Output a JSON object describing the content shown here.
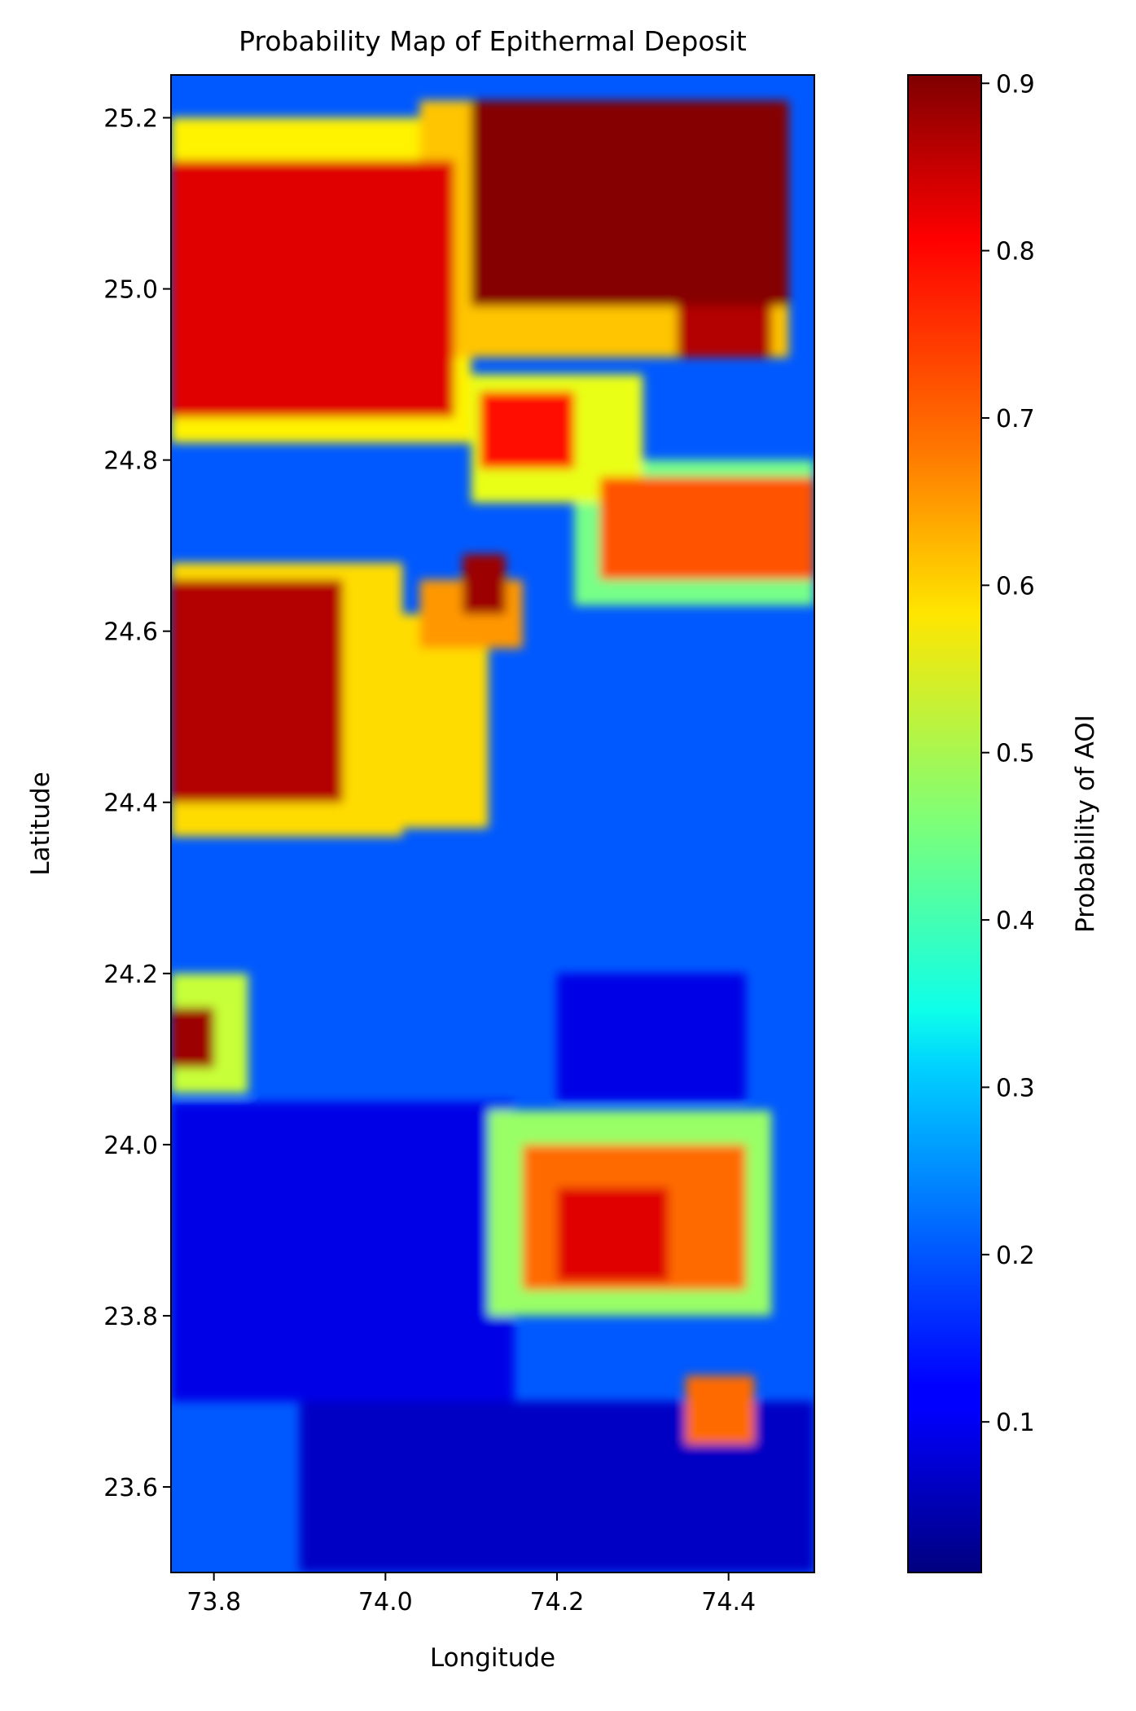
{
  "chart_data": {
    "type": "heatmap",
    "title": "Probability Map of Epithermal Deposit",
    "xlabel": "Longitude",
    "ylabel": "Latitude",
    "xlim": [
      73.75,
      74.5
    ],
    "ylim": [
      23.5,
      25.25
    ],
    "xticks": [
      {
        "value": 73.8,
        "label": "73.8"
      },
      {
        "value": 74.0,
        "label": "74.0"
      },
      {
        "value": 74.2,
        "label": "74.2"
      },
      {
        "value": 74.4,
        "label": "74.4"
      }
    ],
    "yticks": [
      {
        "value": 23.6,
        "label": "23.6"
      },
      {
        "value": 23.8,
        "label": "23.8"
      },
      {
        "value": 24.0,
        "label": "24.0"
      },
      {
        "value": 24.2,
        "label": "24.2"
      },
      {
        "value": 24.4,
        "label": "24.4"
      },
      {
        "value": 24.6,
        "label": "24.6"
      },
      {
        "value": 24.8,
        "label": "24.8"
      },
      {
        "value": 25.0,
        "label": "25.0"
      },
      {
        "value": 25.2,
        "label": "25.2"
      }
    ],
    "colormap": "jet",
    "colorbar": {
      "label": "Probability of AOI",
      "range": [
        0.01,
        0.905
      ],
      "ticks": [
        {
          "value": 0.1,
          "label": "0.1"
        },
        {
          "value": 0.2,
          "label": "0.2"
        },
        {
          "value": 0.3,
          "label": "0.3"
        },
        {
          "value": 0.4,
          "label": "0.4"
        },
        {
          "value": 0.5,
          "label": "0.5"
        },
        {
          "value": 0.6,
          "label": "0.6"
        },
        {
          "value": 0.7,
          "label": "0.7"
        },
        {
          "value": 0.8,
          "label": "0.8"
        },
        {
          "value": 0.9,
          "label": "0.9"
        }
      ]
    },
    "background_value": 0.2,
    "regions": [
      {
        "name": "northeast-dark-red",
        "lon": [
          74.1,
          74.47
        ],
        "lat": [
          24.98,
          25.22
        ],
        "value": 0.9
      },
      {
        "name": "northeast-lobe",
        "lon": [
          74.34,
          74.45
        ],
        "lat": [
          24.92,
          25.05
        ],
        "value": 0.86
      },
      {
        "name": "northeast-fringe",
        "lon": [
          74.04,
          74.47
        ],
        "lat": [
          24.92,
          25.22
        ],
        "value": 0.62
      },
      {
        "name": "northwest-red",
        "lon": [
          73.75,
          74.08
        ],
        "lat": [
          24.85,
          25.15
        ],
        "value": 0.82
      },
      {
        "name": "northwest-fringe",
        "lon": [
          73.75,
          74.1
        ],
        "lat": [
          24.82,
          25.2
        ],
        "value": 0.58
      },
      {
        "name": "central-north-patch",
        "lon": [
          74.11,
          74.22
        ],
        "lat": [
          24.79,
          24.88
        ],
        "value": 0.78
      },
      {
        "name": "central-north-fringe",
        "lon": [
          74.1,
          74.3
        ],
        "lat": [
          24.75,
          24.9
        ],
        "value": 0.55
      },
      {
        "name": "east-orange",
        "lon": [
          74.25,
          74.5
        ],
        "lat": [
          24.66,
          24.78
        ],
        "value": 0.72
      },
      {
        "name": "east-fringe",
        "lon": [
          74.22,
          74.5
        ],
        "lat": [
          24.63,
          24.8
        ],
        "value": 0.45
      },
      {
        "name": "west-red",
        "lon": [
          73.75,
          73.95
        ],
        "lat": [
          24.4,
          24.66
        ],
        "value": 0.86
      },
      {
        "name": "west-fringe",
        "lon": [
          73.75,
          74.02
        ],
        "lat": [
          24.36,
          24.68
        ],
        "value": 0.6
      },
      {
        "name": "west-center-yellow",
        "lon": [
          73.97,
          74.12
        ],
        "lat": [
          24.37,
          24.62
        ],
        "value": 0.6
      },
      {
        "name": "small-dark-red",
        "lon": [
          74.09,
          74.14
        ],
        "lat": [
          24.62,
          24.69
        ],
        "value": 0.88
      },
      {
        "name": "small-dark-red-tail",
        "lon": [
          74.04,
          74.16
        ],
        "lat": [
          24.58,
          24.66
        ],
        "value": 0.66
      },
      {
        "name": "southwest-edge-red",
        "lon": [
          73.75,
          73.8
        ],
        "lat": [
          24.09,
          24.16
        ],
        "value": 0.88
      },
      {
        "name": "southwest-edge-fringe",
        "lon": [
          73.75,
          73.84
        ],
        "lat": [
          24.06,
          24.2
        ],
        "value": 0.52
      },
      {
        "name": "south-red",
        "lon": [
          74.2,
          74.33
        ],
        "lat": [
          23.84,
          23.95
        ],
        "value": 0.82
      },
      {
        "name": "south-orange",
        "lon": [
          74.16,
          74.42
        ],
        "lat": [
          23.83,
          24.0
        ],
        "value": 0.7
      },
      {
        "name": "south-fringe",
        "lon": [
          74.12,
          74.45
        ],
        "lat": [
          23.8,
          24.04
        ],
        "value": 0.48
      },
      {
        "name": "southeast-square",
        "lon": [
          74.35,
          74.43
        ],
        "lat": [
          23.65,
          23.73
        ],
        "value": 0.7
      },
      {
        "name": "far-south-blue",
        "lon": [
          73.9,
          74.5
        ],
        "lat": [
          23.5,
          23.7
        ],
        "value": 0.07
      },
      {
        "name": "southwest-blue",
        "lon": [
          73.75,
          74.15
        ],
        "lat": [
          23.7,
          24.05
        ],
        "value": 0.1
      },
      {
        "name": "central-blue",
        "lon": [
          74.2,
          74.42
        ],
        "lat": [
          24.05,
          24.2
        ],
        "value": 0.1
      }
    ]
  }
}
